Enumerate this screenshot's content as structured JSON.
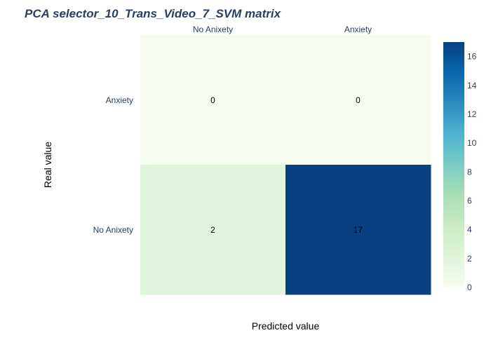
{
  "chart_data": {
    "type": "heatmap",
    "title": "PCA selector_10_Trans_Video_7_SVM matrix",
    "xlabel": "Predicted value",
    "ylabel": "Real value",
    "x_categories": [
      "No Anixety",
      "Anxiety"
    ],
    "y_categories": [
      "Anxiety",
      "No Anixety"
    ],
    "x_axis_side": "top",
    "values": [
      [
        0,
        0
      ],
      [
        2,
        17
      ]
    ],
    "colorscale": {
      "name": "GnBu",
      "zmin": 0,
      "zmax": 17,
      "stops": [
        [
          0.0,
          "#f7fcf0"
        ],
        [
          0.125,
          "#e0f3db"
        ],
        [
          0.25,
          "#ccebc5"
        ],
        [
          0.375,
          "#a8ddb5"
        ],
        [
          0.5,
          "#7bccc4"
        ],
        [
          0.625,
          "#4eb3d3"
        ],
        [
          0.75,
          "#2b8cbe"
        ],
        [
          0.875,
          "#0868ac"
        ],
        [
          1.0,
          "#084081"
        ]
      ]
    },
    "colorbar_ticks": [
      0,
      2,
      4,
      6,
      8,
      10,
      12,
      14,
      16
    ],
    "colorbar_position": "right",
    "text_color": "#000000",
    "title_color": "#2a3f5f",
    "tick_color": "#2a3f5f",
    "label_color": "#000000"
  }
}
